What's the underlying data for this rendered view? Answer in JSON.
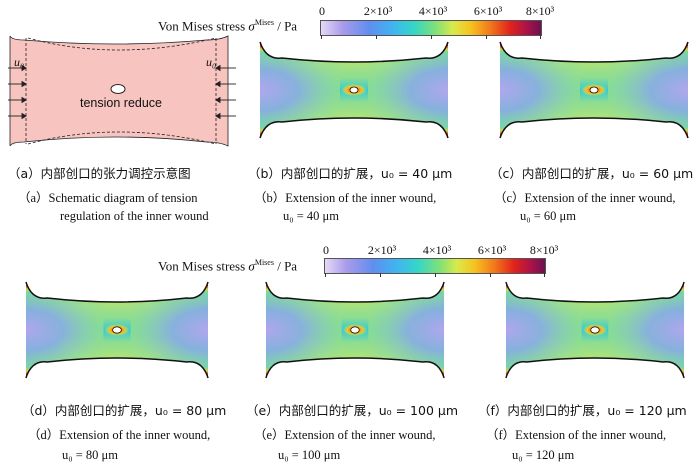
{
  "colorbar": {
    "label_prefix": "Von Mises stress ",
    "sigma": "σ",
    "sup": "Mises",
    "unit": "/ Pa",
    "ticks": [
      "0",
      "2×10³",
      "4×10³",
      "6×10³",
      "8×10³"
    ]
  },
  "panel_a": {
    "u0_left": "u₀",
    "u0_right": "u₀",
    "center_text": "tension reduce"
  },
  "captions": {
    "a_cn": "（a）内部创口的张力调控示意图",
    "a_en1": "（a）Schematic diagram of tension",
    "a_en2": "regulation of the inner wound",
    "b_cn": "（b）内部创口的扩展，u₀ = 40 μm",
    "b_en1": "（b）Extension of the inner wound,",
    "b_en2": "u₀ = 40 μm",
    "c_cn": "（c）内部创口的扩展，u₀ = 60 μm",
    "c_en1": "（c）Extension of the inner wound,",
    "c_en2": "u₀ = 60 μm",
    "d_cn": "（d）内部创口的扩展，u₀ = 80 μm",
    "d_en1": "（d）Extension of the inner wound,",
    "d_en2": "u₀ = 80 μm",
    "e_cn": "（e）内部创口的扩展，u₀ = 100 μm",
    "e_en1": "（e）Extension of the inner wound,",
    "e_en2": "u₀ = 100 μm",
    "f_cn": "（f）内部创口的扩展，u₀ = 120 μm",
    "f_en1": "（f）Extension of the inner wound,",
    "f_en2": "u₀ = 120 μm"
  }
}
